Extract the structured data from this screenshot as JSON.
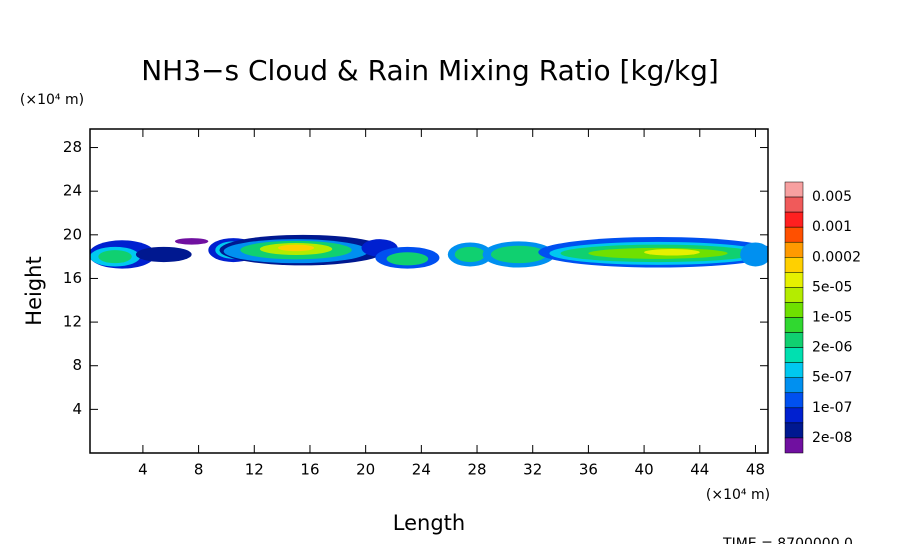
{
  "chart_data": {
    "type": "contour",
    "title": "NH3−s Cloud & Rain Mixing Ratio [kg/kg]",
    "x_label": "Length",
    "y_label": "Height",
    "x_unit": "(×10⁴ m)",
    "y_unit": "(×10⁴ m)",
    "footer": "TIME =  8700000.0",
    "xlim": [
      0.2,
      48.9
    ],
    "ylim": [
      0,
      29.7
    ],
    "xticks": [
      4,
      8,
      12,
      16,
      20,
      24,
      28,
      32,
      36,
      40,
      44,
      48
    ],
    "yticks": [
      4,
      8,
      12,
      16,
      20,
      24,
      28
    ],
    "colorbar": {
      "colors": [
        "#f7a0a0",
        "#f05a5a",
        "#ff2020",
        "#ff5000",
        "#ff9a00",
        "#ffd000",
        "#e6f000",
        "#b4ec00",
        "#6fe000",
        "#30d830",
        "#10d070",
        "#00e0b0",
        "#00c8f0",
        "#0090f0",
        "#0050f0",
        "#0020d0",
        "#001890",
        "#7010a0"
      ],
      "labels": [
        "0.005",
        "0.001",
        "0.0002",
        "5e-05",
        "1e-05",
        "2e-06",
        "5e-07",
        "1e-07",
        "2e-08"
      ]
    },
    "regions": [
      {
        "cx": 2.5,
        "cy": 18.2,
        "rx": 2.4,
        "ry": 1.3,
        "level": 15
      },
      {
        "cx": 2,
        "cy": 18,
        "rx": 1.8,
        "ry": 0.9,
        "level": 12
      },
      {
        "cx": 2,
        "cy": 18,
        "rx": 1.2,
        "ry": 0.6,
        "level": 10
      },
      {
        "cx": 5.5,
        "cy": 18.2,
        "rx": 2,
        "ry": 0.7,
        "level": 16
      },
      {
        "cx": 7.5,
        "cy": 19.4,
        "rx": 1.2,
        "ry": 0.3,
        "level": 17
      },
      {
        "cx": 10.5,
        "cy": 18.6,
        "rx": 1.8,
        "ry": 1.1,
        "level": 15
      },
      {
        "cx": 10.5,
        "cy": 18.6,
        "rx": 1.3,
        "ry": 0.8,
        "level": 12
      },
      {
        "cx": 15.5,
        "cy": 18.6,
        "rx": 6,
        "ry": 1.4,
        "level": 16
      },
      {
        "cx": 15,
        "cy": 18.5,
        "rx": 5.2,
        "ry": 1.1,
        "level": 13
      },
      {
        "cx": 15,
        "cy": 18.6,
        "rx": 4,
        "ry": 0.85,
        "level": 10
      },
      {
        "cx": 15,
        "cy": 18.7,
        "rx": 2.6,
        "ry": 0.55,
        "level": 7
      },
      {
        "cx": 15,
        "cy": 18.8,
        "rx": 1.3,
        "ry": 0.3,
        "level": 5
      },
      {
        "cx": 21,
        "cy": 18.8,
        "rx": 1.3,
        "ry": 0.8,
        "level": 15
      },
      {
        "cx": 23,
        "cy": 17.9,
        "rx": 2.3,
        "ry": 1.0,
        "level": 14
      },
      {
        "cx": 23,
        "cy": 17.8,
        "rx": 1.5,
        "ry": 0.6,
        "level": 10
      },
      {
        "cx": 27.5,
        "cy": 18.2,
        "rx": 1.6,
        "ry": 1.1,
        "level": 13
      },
      {
        "cx": 27.5,
        "cy": 18.2,
        "rx": 1.1,
        "ry": 0.7,
        "level": 10
      },
      {
        "cx": 31,
        "cy": 18.2,
        "rx": 2.6,
        "ry": 1.2,
        "level": 13
      },
      {
        "cx": 31,
        "cy": 18.2,
        "rx": 2,
        "ry": 0.8,
        "level": 10
      },
      {
        "cx": 41,
        "cy": 18.4,
        "rx": 8.6,
        "ry": 1.4,
        "level": 14
      },
      {
        "cx": 41,
        "cy": 18.3,
        "rx": 7.8,
        "ry": 1.05,
        "level": 12
      },
      {
        "cx": 41,
        "cy": 18.3,
        "rx": 7,
        "ry": 0.8,
        "level": 10
      },
      {
        "cx": 41,
        "cy": 18.3,
        "rx": 5,
        "ry": 0.5,
        "level": 8
      },
      {
        "cx": 42,
        "cy": 18.4,
        "rx": 2,
        "ry": 0.3,
        "level": 6
      },
      {
        "cx": 48,
        "cy": 18.2,
        "rx": 1.1,
        "ry": 1.1,
        "level": 13
      }
    ]
  }
}
